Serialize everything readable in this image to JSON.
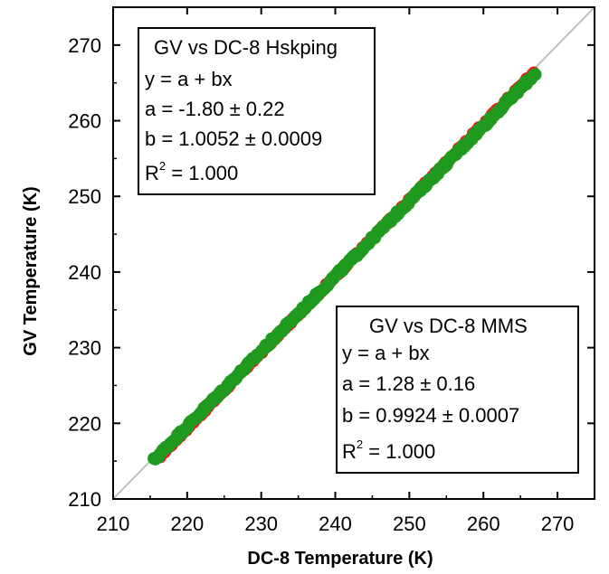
{
  "chart_data": {
    "type": "scatter",
    "xlabel": "DC-8 Temperature (K)",
    "ylabel": "GV Temperature (K)",
    "xlim": [
      210,
      275
    ],
    "ylim": [
      210,
      275
    ],
    "xticks": [
      210,
      220,
      230,
      240,
      250,
      260,
      270
    ],
    "yticks": [
      210,
      220,
      230,
      240,
      250,
      260,
      270
    ],
    "grid": false,
    "reference_line": {
      "slope": 1,
      "intercept": 0,
      "color": "#c0c0c0"
    },
    "series": [
      {
        "name": "GV vs DC-8 Hskping",
        "color": "#e8201a",
        "fit": {
          "a": -1.8,
          "b": 1.0052
        },
        "x_range": [
          216.0,
          266.8
        ]
      },
      {
        "name": "GV vs DC-8 MMS",
        "color": "#1f9a1f",
        "fit": {
          "a": 1.28,
          "b": 0.9924
        },
        "x_range": [
          215.5,
          267.0
        ]
      }
    ],
    "annotations": [
      {
        "title": "GV vs DC-8 Hskping",
        "title_color": "#e8201a",
        "lines": [
          "y = a + bx",
          "a = -1.80 ± 0.22",
          "b = 1.0052 ± 0.0009"
        ],
        "r2_label": "R",
        "r2_sup": "2",
        "r2_value": " = 1.000",
        "position": "top-left"
      },
      {
        "title": "GV vs DC-8 MMS",
        "title_color": "#1f9a1f",
        "lines": [
          "y = a + bx",
          "a = 1.28 ± 0.16",
          "b = 0.9924 ± 0.0007"
        ],
        "r2_label": "R",
        "r2_sup": "2",
        "r2_value": " = 1.000",
        "position": "bottom-right"
      }
    ]
  }
}
